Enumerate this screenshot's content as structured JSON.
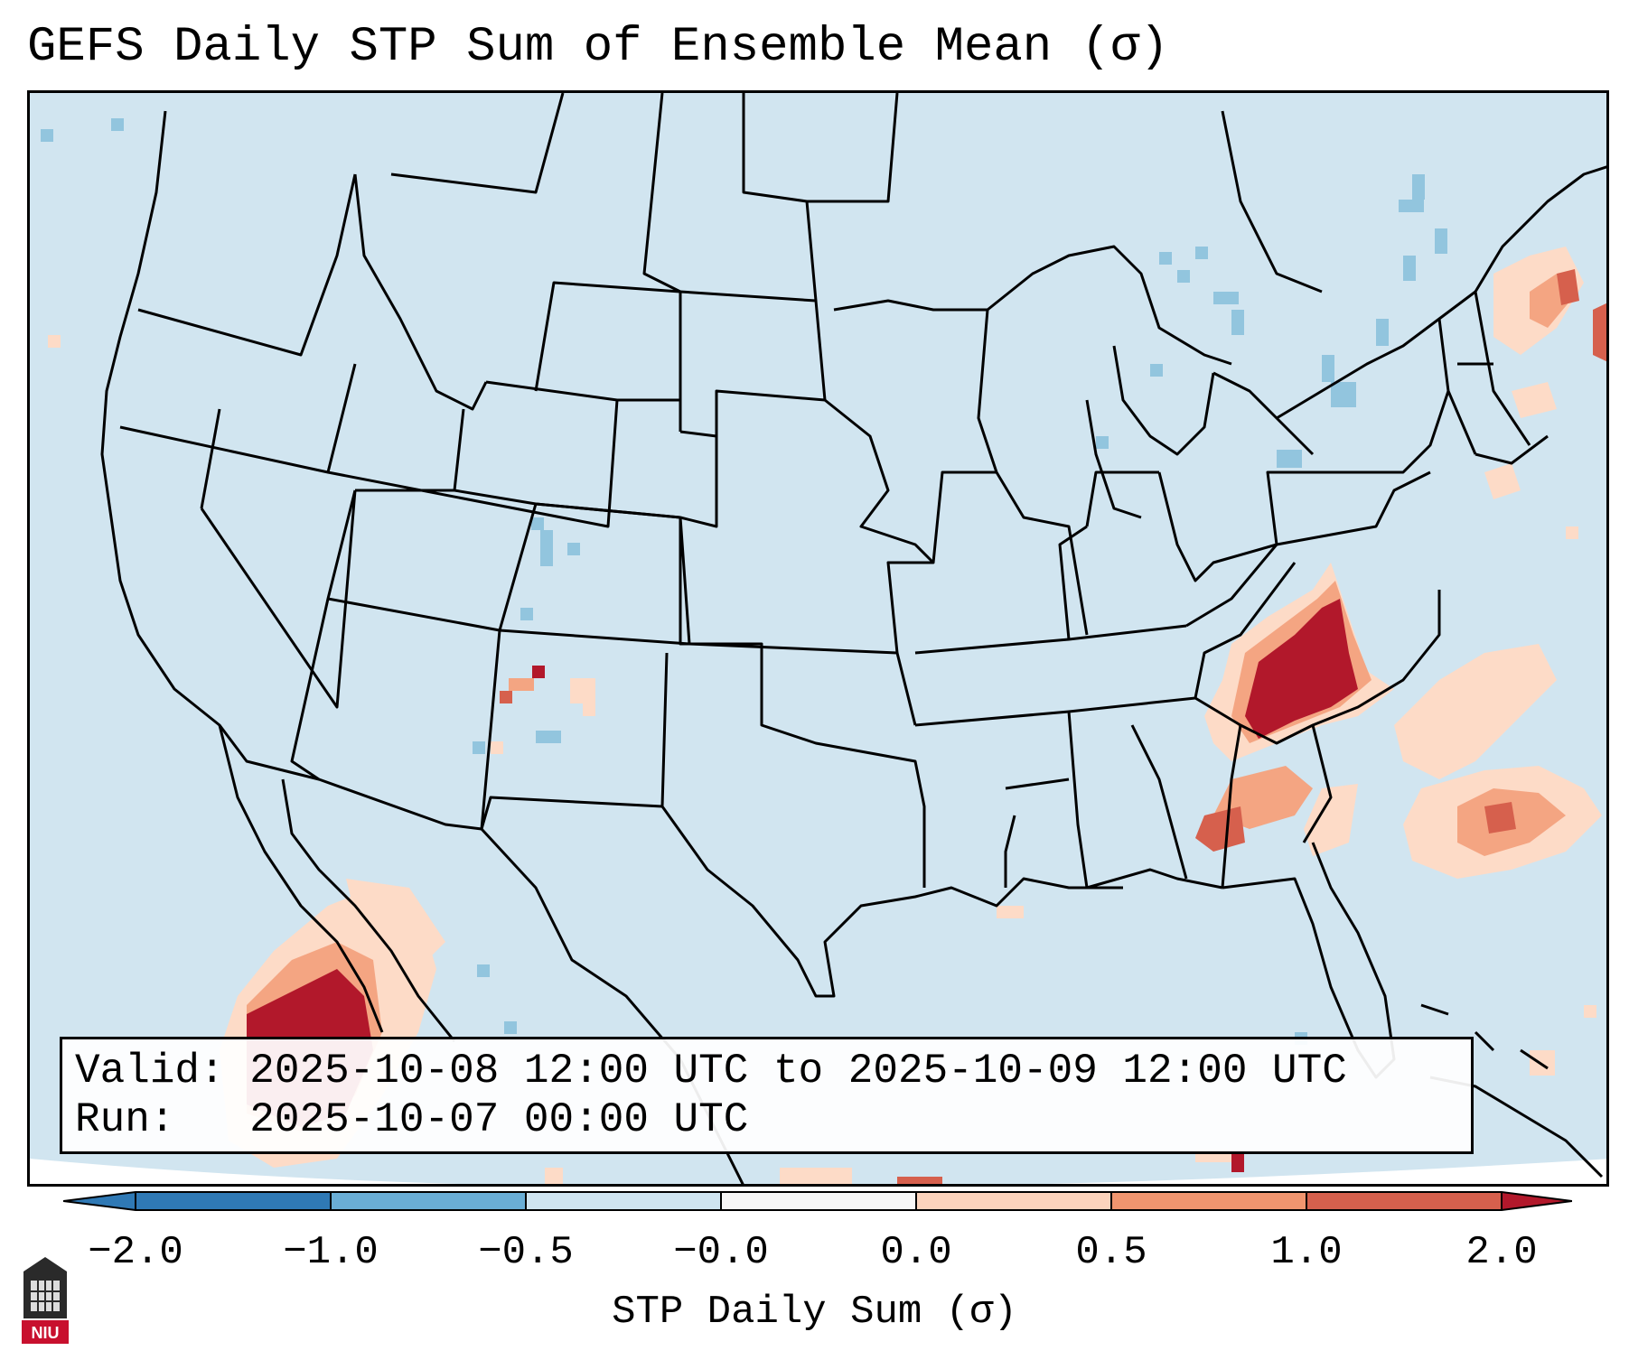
{
  "title": "GEFS Daily STP Sum of Ensemble Mean (σ)",
  "info": {
    "valid_label": "Valid:",
    "valid_value": "2025-10-08 12:00 UTC to 2025-10-09 12:00 UTC",
    "run_label": "Run:",
    "run_value": "2025-10-07 00:00 UTC"
  },
  "colorbar": {
    "label": "STP Daily Sum (σ)",
    "ticks": [
      "−2.0",
      "−1.0",
      "−0.5",
      "−0.0",
      "0.0",
      "0.5",
      "1.0",
      "2.0"
    ],
    "colors": [
      "#2f79b5",
      "#6aaed6",
      "#cfe4f0",
      "#f7f7f7",
      "#fcd3bc",
      "#f0956f",
      "#d6604d",
      "#b2182b"
    ]
  },
  "map_colors": {
    "background": "#d1e5f0",
    "light_pos": "#fddbc7",
    "mid_pos": "#f4a582",
    "strong_pos": "#d6604d",
    "max_pos": "#b2182b",
    "light_neg": "#92c5de",
    "state_lines": "#000000"
  },
  "logo": {
    "text": "NIU"
  }
}
